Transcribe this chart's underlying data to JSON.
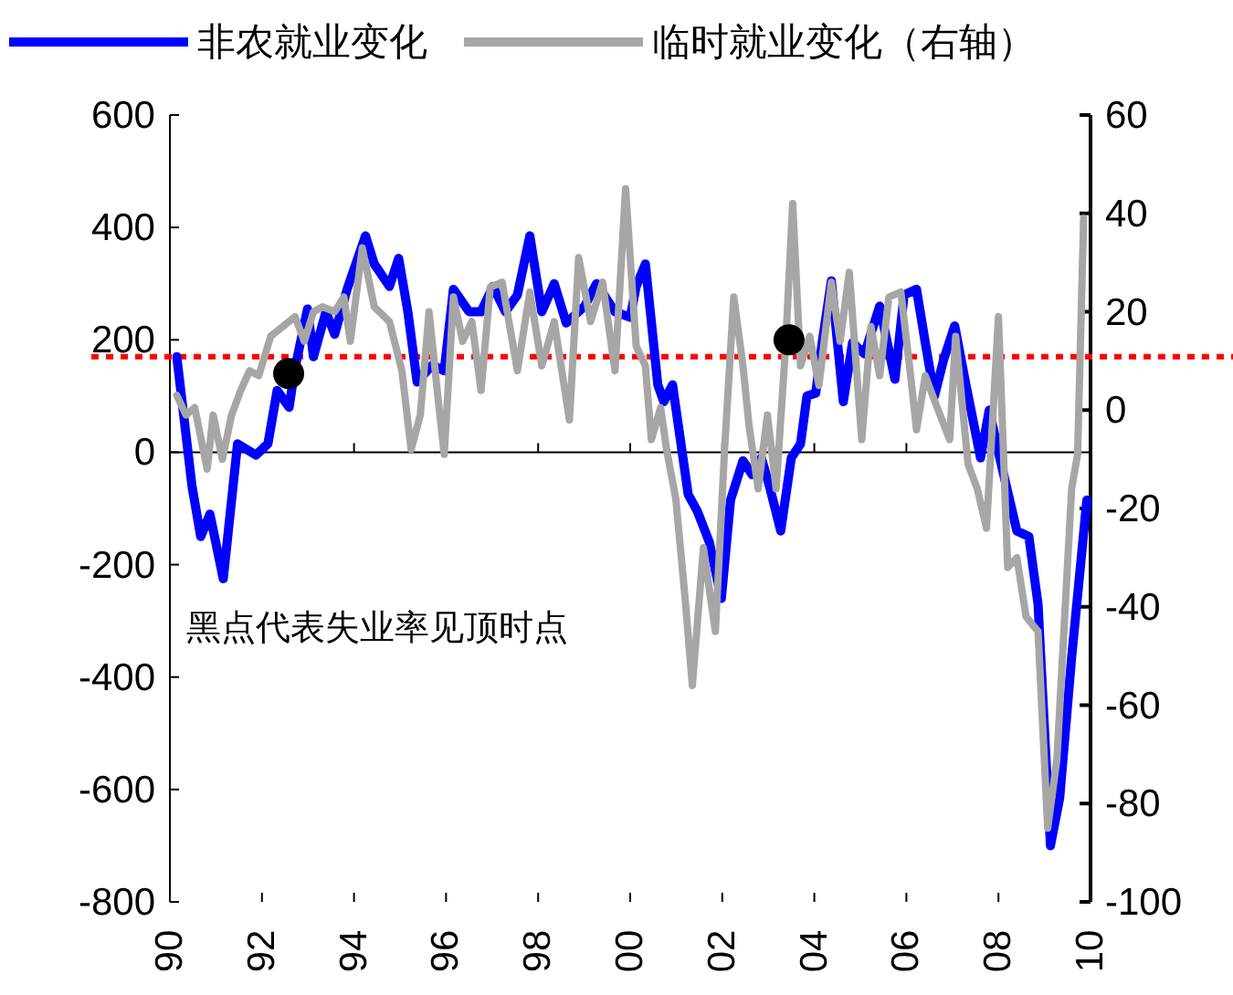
{
  "chart_data": {
    "type": "line",
    "legend": "top",
    "xlim": [
      1990,
      2010
    ],
    "xticks": [
      {
        "value": 1990,
        "label": "90"
      },
      {
        "value": 1992,
        "label": "92"
      },
      {
        "value": 1994,
        "label": "94"
      },
      {
        "value": 1996,
        "label": "96"
      },
      {
        "value": 1998,
        "label": "98"
      },
      {
        "value": 2000,
        "label": "00"
      },
      {
        "value": 2002,
        "label": "02"
      },
      {
        "value": 2004,
        "label": "04"
      },
      {
        "value": 2006,
        "label": "06"
      },
      {
        "value": 2008,
        "label": "08"
      },
      {
        "value": 2010,
        "label": "10"
      }
    ],
    "ylim": [
      -800,
      600
    ],
    "yticks": [
      -800,
      -600,
      -400,
      -200,
      0,
      200,
      400,
      600
    ],
    "y2lim": [
      -100,
      60
    ],
    "y2ticks": [
      -100,
      -80,
      -60,
      -40,
      -20,
      0,
      20,
      40,
      60
    ],
    "series": [
      {
        "name": "非农就业变化",
        "color": "#0000ff",
        "x": [
          1990.15,
          1990.48,
          1990.67,
          1990.87,
          1991.16,
          1991.47,
          1991.87,
          1992.13,
          1992.33,
          1992.59,
          1992.72,
          1992.99,
          1993.12,
          1993.39,
          1993.58,
          1993.85,
          1994.25,
          1994.44,
          1994.77,
          1994.97,
          1995.17,
          1995.37,
          1995.7,
          1995.96,
          1996.16,
          1996.5,
          1996.76,
          1997.02,
          1997.29,
          1997.55,
          1997.82,
          1998.08,
          1998.35,
          1998.61,
          1999.01,
          1999.27,
          1999.67,
          2000.0,
          2000.13,
          2000.33,
          2000.6,
          2000.73,
          2000.92,
          2001.26,
          2001.46,
          2001.72,
          2001.98,
          2002.18,
          2002.45,
          2002.65,
          2002.85,
          2003.04,
          2003.27,
          2003.5,
          2003.7,
          2003.84,
          2004.03,
          2004.17,
          2004.37,
          2004.63,
          2004.83,
          2005.09,
          2005.42,
          2005.75,
          2005.95,
          2006.22,
          2006.41,
          2006.61,
          2006.81,
          2007.05,
          2007.27,
          2007.61,
          2007.8,
          2008.0,
          2008.4,
          2008.66,
          2008.86,
          2009.13,
          2009.33,
          2009.59,
          2009.92
        ],
        "values": [
          170,
          -60,
          -150,
          -110,
          -225,
          15,
          -5,
          15,
          110,
          80,
          150,
          255,
          170,
          250,
          210,
          290,
          385,
          335,
          295,
          345,
          250,
          125,
          155,
          145,
          290,
          250,
          250,
          295,
          250,
          280,
          385,
          250,
          300,
          230,
          260,
          300,
          250,
          240,
          295,
          335,
          120,
          90,
          120,
          -75,
          -105,
          -160,
          -260,
          -85,
          -15,
          -40,
          -10,
          -65,
          -140,
          -10,
          15,
          100,
          105,
          195,
          305,
          90,
          195,
          175,
          260,
          130,
          280,
          290,
          195,
          100,
          165,
          225,
          130,
          -10,
          75,
          0,
          -140,
          -150,
          -270,
          -700,
          -615,
          -365,
          -85
        ]
      },
      {
        "name": "临时就业变化（右轴）",
        "color": "#a6a6a6",
        "axis": "y2",
        "x": [
          1990.15,
          1990.35,
          1990.54,
          1990.81,
          1990.94,
          1991.14,
          1991.34,
          1991.54,
          1991.73,
          1991.93,
          1992.19,
          1992.72,
          1992.92,
          1993.12,
          1993.32,
          1993.58,
          1993.78,
          1993.92,
          1994.18,
          1994.44,
          1994.77,
          1995.04,
          1995.24,
          1995.44,
          1995.63,
          1995.83,
          1995.96,
          1996.16,
          1996.36,
          1996.56,
          1996.76,
          1996.96,
          1997.22,
          1997.42,
          1997.55,
          1997.82,
          1998.08,
          1998.35,
          1998.68,
          1998.88,
          1999.14,
          1999.4,
          1999.67,
          1999.9,
          2000.13,
          2000.33,
          2000.46,
          2000.66,
          2000.79,
          2000.99,
          2001.19,
          2001.35,
          2001.59,
          2001.85,
          2002.05,
          2002.25,
          2002.45,
          2002.58,
          2002.78,
          2002.98,
          2003.17,
          2003.37,
          2003.53,
          2003.7,
          2003.9,
          2004.1,
          2004.37,
          2004.56,
          2004.76,
          2005.03,
          2005.23,
          2005.42,
          2005.62,
          2005.88,
          2006.08,
          2006.22,
          2006.41,
          2006.67,
          2006.94,
          2007.07,
          2007.34,
          2007.54,
          2007.74,
          2008.0,
          2008.2,
          2008.4,
          2008.6,
          2008.86,
          2009.07,
          2009.27,
          2009.59,
          2009.72,
          2009.85
        ],
        "values": [
          3,
          -1,
          0.5,
          -12,
          -1,
          -10,
          -1,
          4,
          8,
          7,
          15,
          19,
          14,
          20,
          21,
          20,
          23,
          14,
          33,
          21,
          18,
          8,
          -8,
          -1,
          20,
          2,
          -9,
          23,
          14,
          18,
          4,
          25,
          26,
          15,
          8,
          24,
          9,
          18,
          -2,
          31,
          18,
          26,
          8,
          45,
          13,
          9,
          -6,
          0.5,
          -8,
          -18,
          -38,
          -56,
          -28,
          -45,
          -8,
          23,
          9,
          -3,
          -16,
          -1,
          -16,
          12,
          42,
          9,
          15,
          5,
          26,
          14,
          28,
          -6,
          17,
          7,
          23,
          24,
          8,
          -4,
          7,
          0.5,
          -6,
          15,
          -11,
          -16,
          -24,
          19,
          -32,
          -30,
          -42,
          -45,
          -85,
          -71,
          -16,
          -9,
          39
        ]
      },
      {
        "type": "scatter",
        "marker": "circle",
        "color": "#000000",
        "x": [
          1992.58,
          2003.45
        ],
        "values": [
          140,
          200
        ]
      }
    ],
    "ref_lines": [
      {
        "axis": "y",
        "value": 170,
        "color": "#ff0000",
        "line_style": "dotted"
      }
    ],
    "annotations": [
      "黑点代表失业率见顶时点"
    ]
  }
}
